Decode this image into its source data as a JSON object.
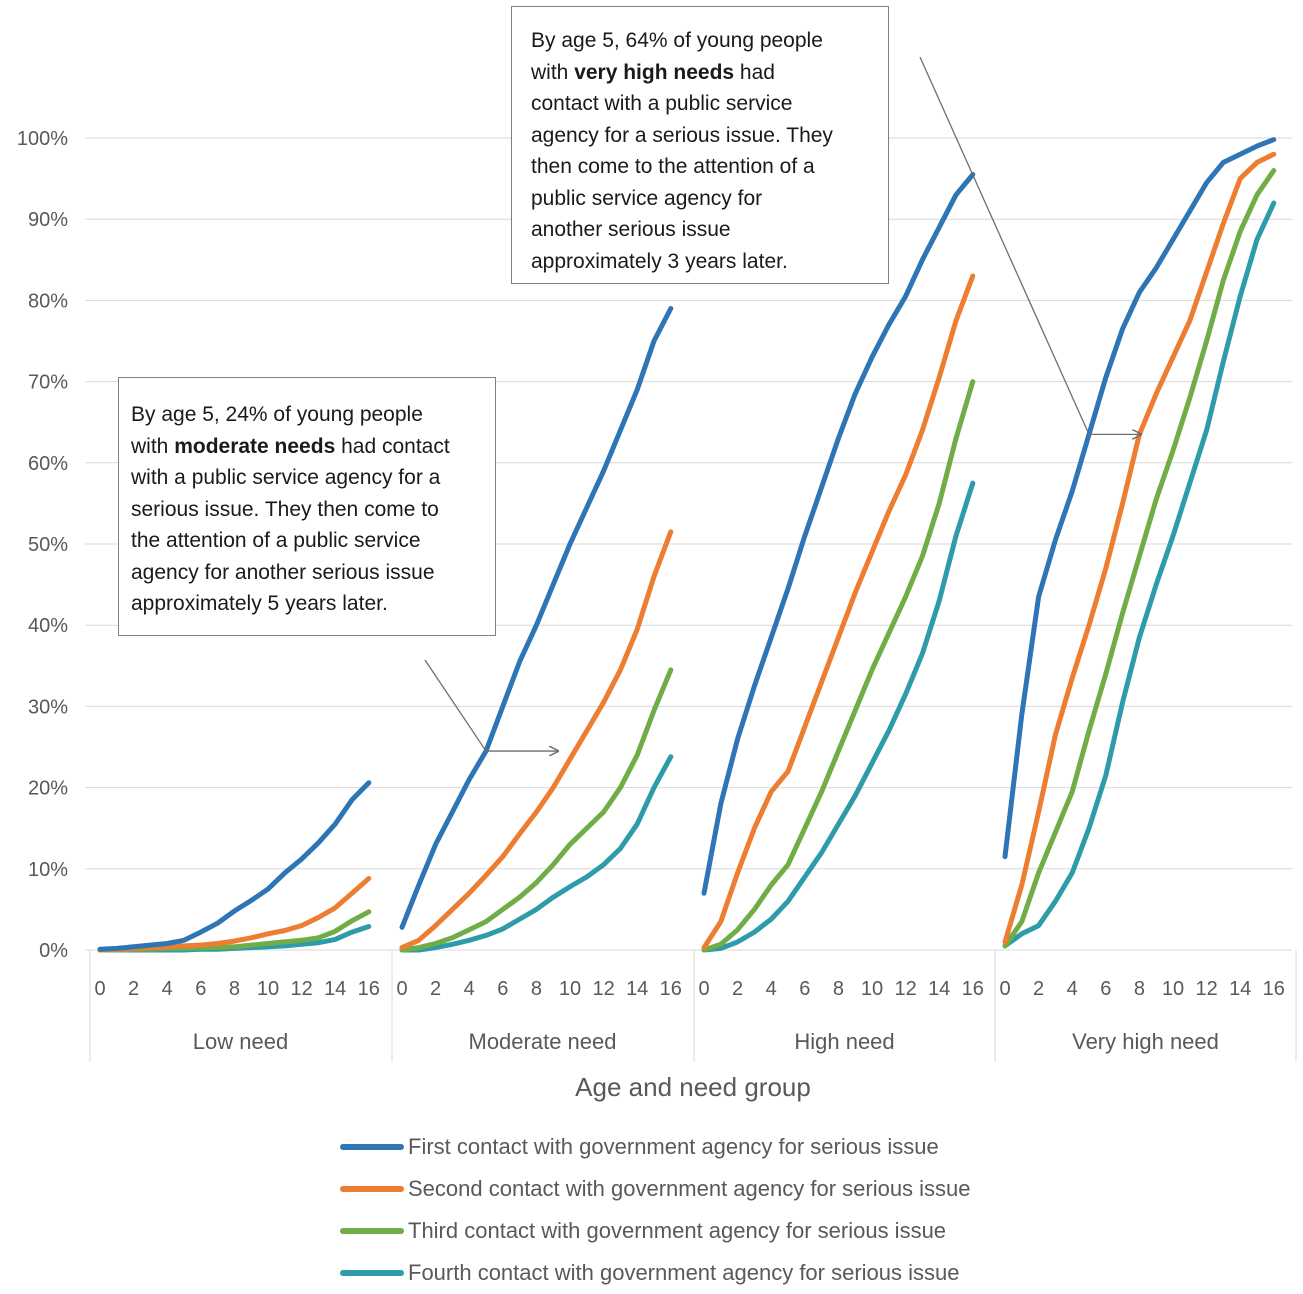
{
  "chart_data": {
    "type": "line",
    "xlabel": "Age and need group",
    "ylabel": "",
    "ylim": [
      0,
      100
    ],
    "y_ticks": [
      "0%",
      "10%",
      "20%",
      "30%",
      "40%",
      "50%",
      "60%",
      "70%",
      "80%",
      "90%",
      "100%"
    ],
    "x_ticks": [
      "0",
      "2",
      "4",
      "6",
      "8",
      "10",
      "12",
      "14",
      "16"
    ],
    "ages": [
      0,
      1,
      2,
      3,
      4,
      5,
      6,
      7,
      8,
      9,
      10,
      11,
      12,
      13,
      14,
      15,
      16
    ],
    "grid": true,
    "legend_position": "bottom",
    "colors": [
      "#2e75b6",
      "#ed7d31",
      "#70ad47",
      "#2e9bab"
    ],
    "series_names": [
      "First contact with government agency for serious issue",
      "Second contact with government agency for serious issue",
      "Third contact with government agency for serious issue",
      "Fourth contact with government agency for serious issue"
    ],
    "groups": [
      {
        "name": "Low need",
        "series": [
          {
            "values": [
              0.1,
              0.2,
              0.4,
              0.6,
              0.8,
              1.2,
              2.2,
              3.3,
              4.8,
              6.1,
              7.5,
              9.5,
              11.2,
              13.2,
              15.5,
              18.5,
              20.6
            ]
          },
          {
            "values": [
              0.0,
              0.1,
              0.2,
              0.3,
              0.4,
              0.5,
              0.6,
              0.8,
              1.1,
              1.5,
              2.0,
              2.4,
              3.0,
              4.0,
              5.2,
              7.0,
              8.8
            ]
          },
          {
            "values": [
              0.0,
              0.0,
              0.1,
              0.1,
              0.2,
              0.2,
              0.3,
              0.3,
              0.4,
              0.6,
              0.8,
              1.0,
              1.2,
              1.5,
              2.3,
              3.6,
              4.7
            ]
          },
          {
            "values": [
              0.0,
              0.0,
              0.0,
              0.0,
              0.0,
              0.0,
              0.1,
              0.1,
              0.2,
              0.3,
              0.4,
              0.5,
              0.7,
              0.9,
              1.3,
              2.2,
              2.9
            ]
          }
        ]
      },
      {
        "name": "Moderate need",
        "series": [
          {
            "values": [
              2.8,
              8.0,
              13.0,
              17.0,
              21.0,
              24.5,
              30.0,
              35.5,
              40.0,
              45.0,
              50.0,
              54.5,
              59.0,
              64.0,
              69.0,
              75.0,
              79.0
            ]
          },
          {
            "values": [
              0.3,
              1.2,
              3.0,
              5.0,
              7.0,
              9.2,
              11.5,
              14.3,
              17.0,
              20.0,
              23.5,
              27.0,
              30.5,
              34.5,
              39.5,
              46.0,
              51.5
            ]
          },
          {
            "values": [
              0.0,
              0.3,
              0.8,
              1.5,
              2.5,
              3.5,
              5.0,
              6.5,
              8.3,
              10.5,
              13.0,
              15.0,
              17.0,
              20.0,
              24.0,
              29.5,
              34.5
            ]
          },
          {
            "values": [
              0.0,
              0.0,
              0.3,
              0.7,
              1.2,
              1.8,
              2.6,
              3.8,
              5.0,
              6.5,
              7.8,
              9.0,
              10.5,
              12.5,
              15.5,
              20.0,
              23.8
            ]
          }
        ]
      },
      {
        "name": "High need",
        "series": [
          {
            "values": [
              7.0,
              18.0,
              26.0,
              32.5,
              38.5,
              44.5,
              51.0,
              57.0,
              63.0,
              68.5,
              73.0,
              77.0,
              80.5,
              85.0,
              89.0,
              93.0,
              95.5
            ]
          },
          {
            "values": [
              0.3,
              3.5,
              9.5,
              15.0,
              19.5,
              22.0,
              27.5,
              33.0,
              38.5,
              44.0,
              49.0,
              54.0,
              58.5,
              64.0,
              70.5,
              77.5,
              83.0
            ]
          },
          {
            "values": [
              0.0,
              0.7,
              2.5,
              5.0,
              8.0,
              10.5,
              15.0,
              19.5,
              24.5,
              29.5,
              34.5,
              39.0,
              43.5,
              48.5,
              55.0,
              63.0,
              70.0
            ]
          },
          {
            "values": [
              0.0,
              0.2,
              1.0,
              2.2,
              3.8,
              6.0,
              9.0,
              12.0,
              15.5,
              19.0,
              23.0,
              27.0,
              31.5,
              36.5,
              43.0,
              51.0,
              57.5
            ]
          }
        ]
      },
      {
        "name": "Very high need",
        "series": [
          {
            "values": [
              11.5,
              29.0,
              43.5,
              50.5,
              56.5,
              63.5,
              70.5,
              76.5,
              81.0,
              84.0,
              87.5,
              91.0,
              94.5,
              97.0,
              98.0,
              99.0,
              99.8
            ]
          },
          {
            "values": [
              1.0,
              8.0,
              17.0,
              26.5,
              33.5,
              40.0,
              47.0,
              55.0,
              63.5,
              68.5,
              73.0,
              77.5,
              83.5,
              89.5,
              95.0,
              97.0,
              98.0
            ]
          },
          {
            "values": [
              0.5,
              3.5,
              9.5,
              14.5,
              19.5,
              27.0,
              34.0,
              41.5,
              48.5,
              55.5,
              61.5,
              68.0,
              75.0,
              82.5,
              88.5,
              93.0,
              96.0
            ]
          },
          {
            "values": [
              0.5,
              2.0,
              3.0,
              6.0,
              9.5,
              15.0,
              21.5,
              30.5,
              38.5,
              45.0,
              51.0,
              57.5,
              64.0,
              72.5,
              80.5,
              87.5,
              92.0
            ]
          }
        ]
      }
    ],
    "annotations": [
      {
        "group": "Moderate need",
        "age": 5,
        "lines": [
          [
            "By age 5, 24% of young people"
          ],
          [
            "with ",
            "moderate needs",
            " had contact"
          ],
          [
            "with a public service agency for a"
          ],
          [
            "serious issue.  They then come to"
          ],
          [
            "the attention of a public service"
          ],
          [
            "agency for another serious issue"
          ],
          [
            "approximately 5 years later."
          ]
        ]
      },
      {
        "group": "Very high need",
        "age": 5,
        "lines": [
          [
            "By age 5, 64% of young people"
          ],
          [
            "with ",
            "very high needs",
            " had"
          ],
          [
            "contact with a public service"
          ],
          [
            "agency for a serious issue. They"
          ],
          [
            "then come to the attention of a"
          ],
          [
            "public service agency for"
          ],
          [
            "another serious issue"
          ],
          [
            "approximately 3 years later."
          ]
        ]
      }
    ]
  }
}
